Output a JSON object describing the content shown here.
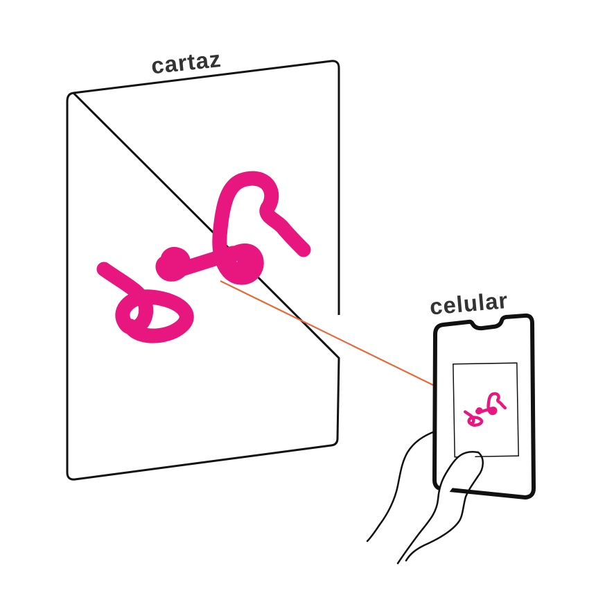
{
  "labels": {
    "poster": "cartaz",
    "phone": "celular"
  },
  "colors": {
    "outline": "#111111",
    "logo": "#E8177F",
    "connector": "#E8683A",
    "label": "#333333",
    "background": "#FFFFFF"
  },
  "icons": [
    "poster",
    "logo-squiggle",
    "smartphone",
    "hand"
  ]
}
